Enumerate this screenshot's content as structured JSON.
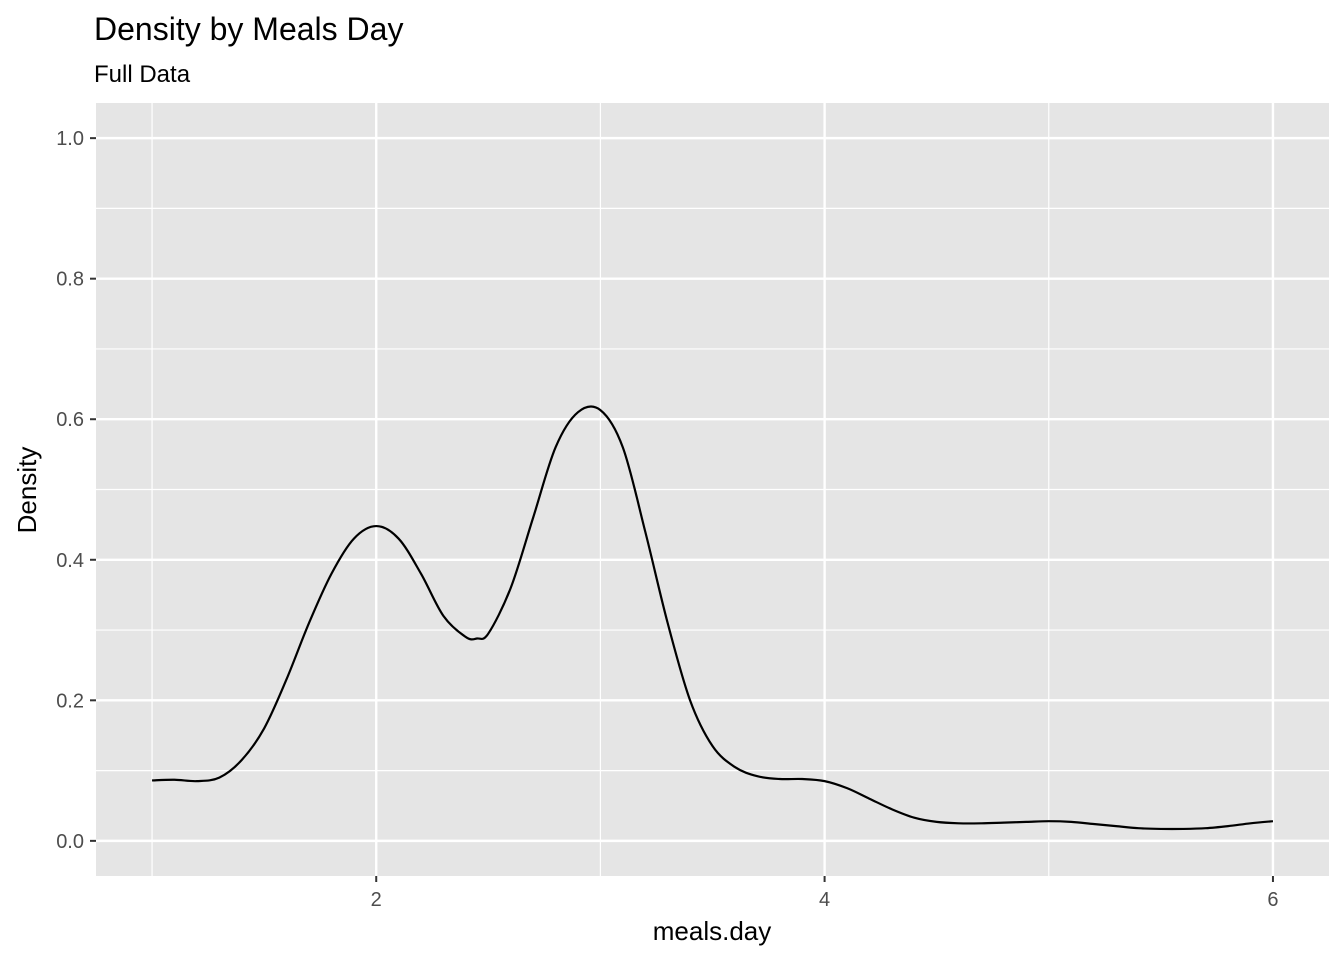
{
  "chart_data": {
    "type": "line",
    "title": "Density by Meals Day",
    "subtitle": "Full Data",
    "xlabel": "meals.day",
    "ylabel": "Density",
    "xlim": [
      0.75,
      6.25
    ],
    "ylim": [
      -0.05,
      1.05
    ],
    "x_ticks": [
      2,
      4,
      6
    ],
    "x_minor_ticks": [
      1,
      3,
      5
    ],
    "y_ticks": [
      0.0,
      0.2,
      0.4,
      0.6,
      0.8,
      1.0
    ],
    "y_minor_ticks": [
      0.1,
      0.3,
      0.5,
      0.7,
      0.9
    ],
    "x_tick_labels": [
      "2",
      "4",
      "6"
    ],
    "y_tick_labels": [
      "0.0",
      "0.2",
      "0.4",
      "0.6",
      "0.8",
      "1.0"
    ],
    "grid": true,
    "legend": "none",
    "colors": {
      "panel": "#e5e5e5",
      "grid": "#ffffff",
      "line": "#000000",
      "tick": "#333333"
    },
    "series": [
      {
        "x": [
          1.0,
          1.1,
          1.2,
          1.3,
          1.4,
          1.5,
          1.6,
          1.7,
          1.8,
          1.9,
          2.0,
          2.1,
          2.2,
          2.3,
          2.4,
          2.45,
          2.5,
          2.6,
          2.7,
          2.8,
          2.9,
          3.0,
          3.1,
          3.2,
          3.3,
          3.4,
          3.5,
          3.6,
          3.7,
          3.8,
          3.9,
          4.0,
          4.1,
          4.2,
          4.3,
          4.4,
          4.5,
          4.6,
          4.7,
          4.8,
          4.9,
          5.0,
          5.1,
          5.2,
          5.3,
          5.4,
          5.5,
          5.6,
          5.7,
          5.8,
          5.9,
          6.0
        ],
        "y": [
          0.086,
          0.087,
          0.085,
          0.09,
          0.115,
          0.16,
          0.23,
          0.31,
          0.38,
          0.43,
          0.448,
          0.43,
          0.38,
          0.32,
          0.29,
          0.288,
          0.295,
          0.36,
          0.46,
          0.56,
          0.61,
          0.613,
          0.56,
          0.44,
          0.31,
          0.2,
          0.135,
          0.105,
          0.092,
          0.088,
          0.088,
          0.085,
          0.075,
          0.06,
          0.045,
          0.033,
          0.027,
          0.025,
          0.025,
          0.026,
          0.027,
          0.028,
          0.027,
          0.024,
          0.021,
          0.018,
          0.017,
          0.017,
          0.018,
          0.021,
          0.025,
          0.028
        ]
      }
    ]
  }
}
